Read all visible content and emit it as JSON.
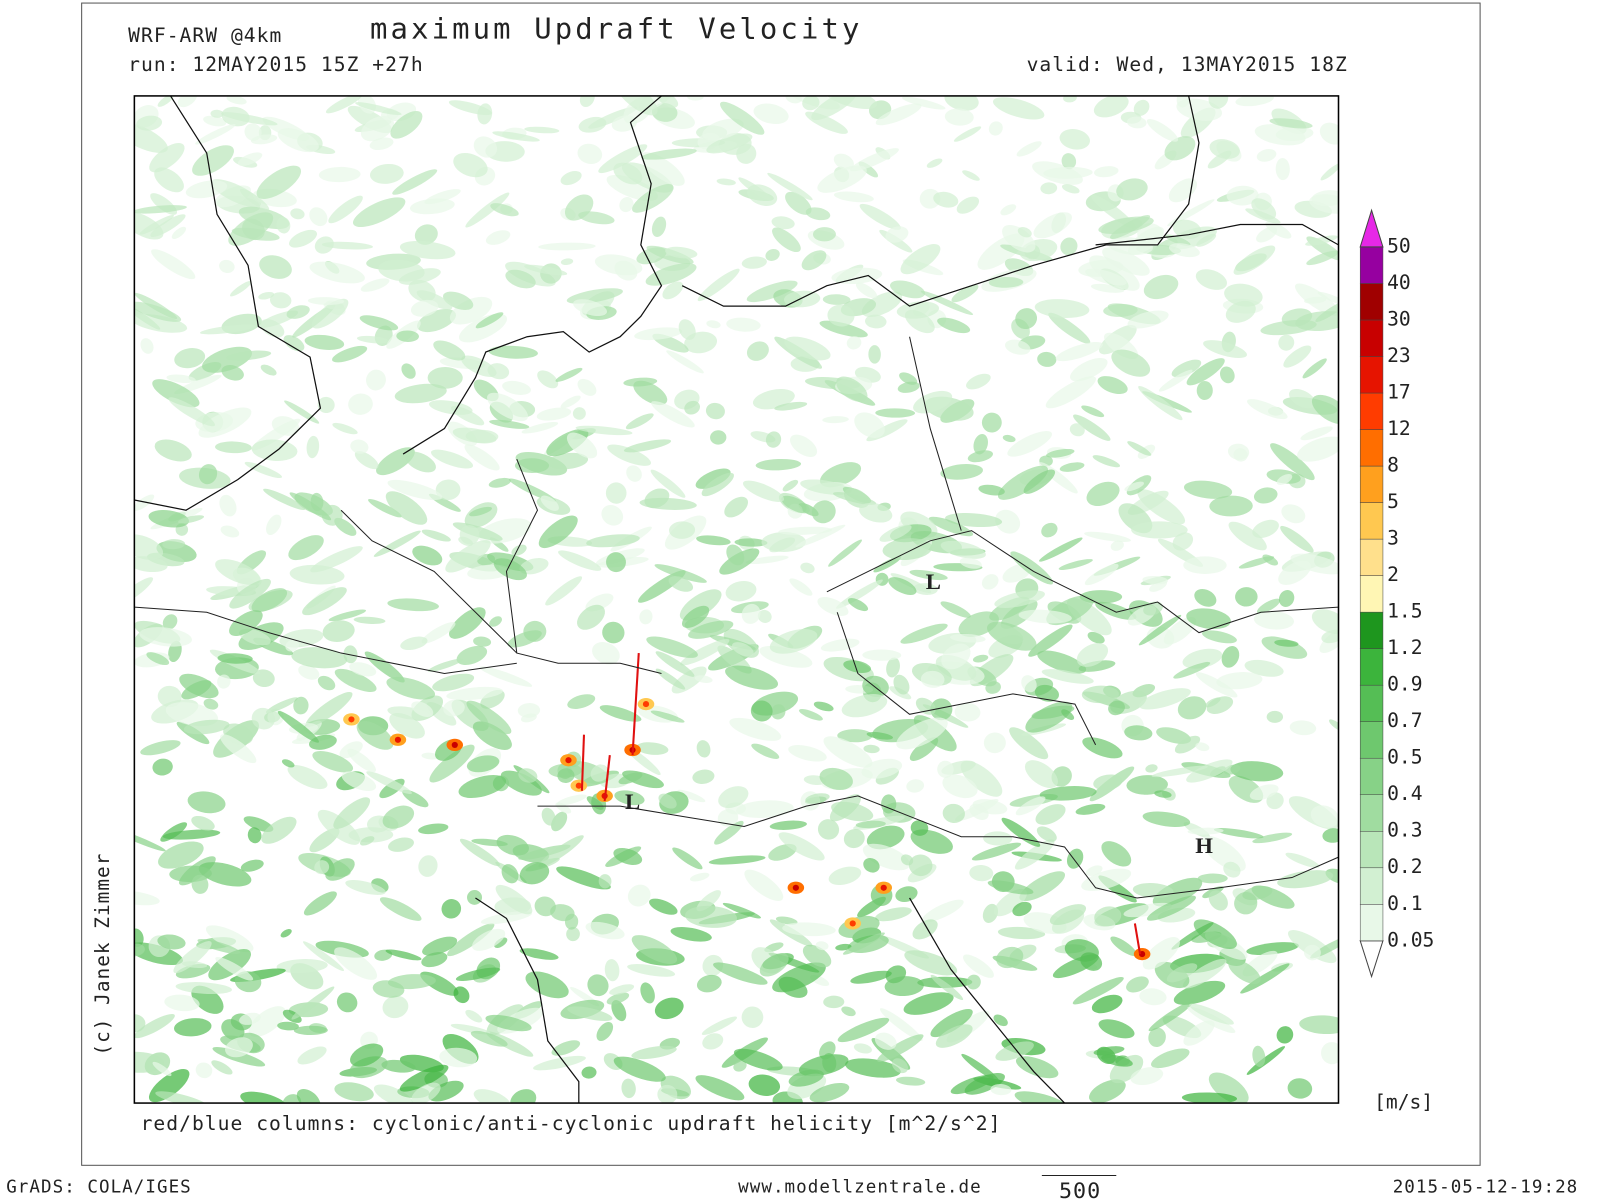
{
  "header": {
    "model": "WRF-ARW @4km",
    "title": "maximum Updraft Velocity",
    "run": "run: 12MAY2015 15Z +27h",
    "valid": "valid: Wed, 13MAY2015 18Z"
  },
  "map": {
    "labels": [
      "L",
      "L",
      "H"
    ]
  },
  "colorbar": {
    "levels": [
      0.05,
      0.1,
      0.2,
      0.3,
      0.4,
      0.5,
      0.7,
      0.9,
      1.2,
      1.5,
      2,
      3,
      5,
      8,
      12,
      17,
      23,
      30,
      40,
      50
    ],
    "colors": [
      "#ffffff",
      "#e8f8e8",
      "#d2f0d2",
      "#b9e6b9",
      "#a0dca0",
      "#87d287",
      "#6ec86e",
      "#55be55",
      "#3cb43c",
      "#1e961e",
      "#fff6b4",
      "#ffe08c",
      "#ffc850",
      "#ffa01e",
      "#ff6e00",
      "#ff3c00",
      "#e61400",
      "#c80000",
      "#a00000",
      "#9600a0",
      "#e628e6"
    ],
    "unit": "[m/s]"
  },
  "caption": "red/blue columns: cyclonic/anti-cyclonic updraft helicity [m^2/s^2]",
  "credit": "(c) Janek Zimmer",
  "footer": {
    "left": "GrADS: COLA/IGES",
    "center": "www.modellzentrale.de",
    "scale": "500",
    "right": "2015-05-12-19:28"
  }
}
